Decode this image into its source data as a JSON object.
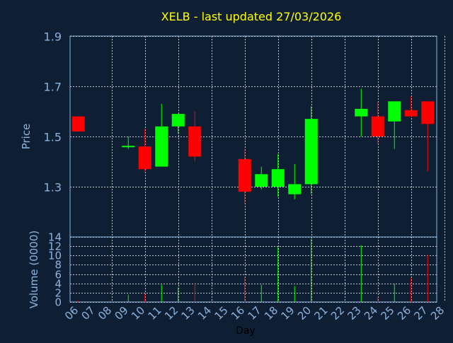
{
  "chart_data": [
    {
      "type": "candlestick",
      "title": "XELB - last updated 27/03/2026",
      "ylabel": "Price",
      "ylim": [
        1.1,
        1.9
      ],
      "yticks": [
        "1.9",
        "1.7",
        "1.5",
        "1.3"
      ],
      "ytick_values": [
        1.9,
        1.7,
        1.5,
        1.3
      ],
      "grid": true,
      "colors": {
        "background": "#0f1f33",
        "up": "#00ff00",
        "down": "#ff0000",
        "axis_text": "#8ab4e0",
        "title": "#ffff00",
        "grid": "#c8c8c8"
      },
      "candles": [
        {
          "day": "06",
          "open": 1.58,
          "high": 1.58,
          "low": 1.52,
          "close": 1.52
        },
        {
          "day": "09",
          "open": 1.455,
          "high": 1.5,
          "low": 1.45,
          "close": 1.46
        },
        {
          "day": "10",
          "open": 1.46,
          "high": 1.53,
          "low": 1.36,
          "close": 1.37
        },
        {
          "day": "11",
          "open": 1.38,
          "high": 1.63,
          "low": 1.38,
          "close": 1.54
        },
        {
          "day": "12",
          "open": 1.54,
          "high": 1.59,
          "low": 1.51,
          "close": 1.59
        },
        {
          "day": "13",
          "open": 1.54,
          "high": 1.6,
          "low": 1.4,
          "close": 1.42
        },
        {
          "day": "16",
          "open": 1.41,
          "high": 1.45,
          "low": 1.23,
          "close": 1.28
        },
        {
          "day": "17",
          "open": 1.3,
          "high": 1.38,
          "low": 1.29,
          "close": 1.35
        },
        {
          "day": "18",
          "open": 1.3,
          "high": 1.43,
          "low": 1.26,
          "close": 1.37
        },
        {
          "day": "19",
          "open": 1.27,
          "high": 1.39,
          "low": 1.25,
          "close": 1.31
        },
        {
          "day": "20",
          "open": 1.31,
          "high": 1.62,
          "low": 1.27,
          "close": 1.57
        },
        {
          "day": "23",
          "open": 1.58,
          "high": 1.69,
          "low": 1.5,
          "close": 1.61
        },
        {
          "day": "24",
          "open": 1.58,
          "high": 1.64,
          "low": 1.47,
          "close": 1.5
        },
        {
          "day": "25",
          "open": 1.56,
          "high": 1.64,
          "low": 1.45,
          "close": 1.64
        },
        {
          "day": "26",
          "open": 1.605,
          "high": 1.66,
          "low": 1.58,
          "close": 1.58
        },
        {
          "day": "27",
          "open": 1.64,
          "high": 1.64,
          "low": 1.36,
          "close": 1.55
        }
      ]
    },
    {
      "type": "bar",
      "ylabel": "Volume (0000)",
      "xlabel": "Day",
      "ylim": [
        0,
        14
      ],
      "yticks": [
        "14",
        "12",
        "10",
        "8",
        "6",
        "4",
        "2",
        "0"
      ],
      "ytick_values": [
        14,
        12,
        10,
        8,
        6,
        4,
        2,
        0
      ],
      "grid": true,
      "categories": [
        "06",
        "07",
        "08",
        "09",
        "10",
        "11",
        "12",
        "13",
        "14",
        "15",
        "16",
        "17",
        "18",
        "19",
        "20",
        "21",
        "22",
        "23",
        "24",
        "25",
        "26",
        "27",
        "28"
      ],
      "series": [
        {
          "values": [
            0.3,
            0,
            0,
            1.6,
            1.8,
            3.7,
            3.1,
            4.2,
            0,
            0,
            5.5,
            3.7,
            11.8,
            3.4,
            13.6,
            0,
            0,
            12.2,
            1.2,
            3.9,
            5.2,
            10.1,
            0
          ],
          "colors": [
            "#ff0000",
            "",
            "",
            "#00ff00",
            "#ff0000",
            "#00ff00",
            "#00ff00",
            "#ff0000",
            "",
            "",
            "#ff0000",
            "#00ff00",
            "#00ff00",
            "#00ff00",
            "#00ff00",
            "",
            "",
            "#00ff00",
            "#ff0000",
            "#00ff00",
            "#ff0000",
            "#ff0000",
            ""
          ]
        }
      ]
    }
  ]
}
